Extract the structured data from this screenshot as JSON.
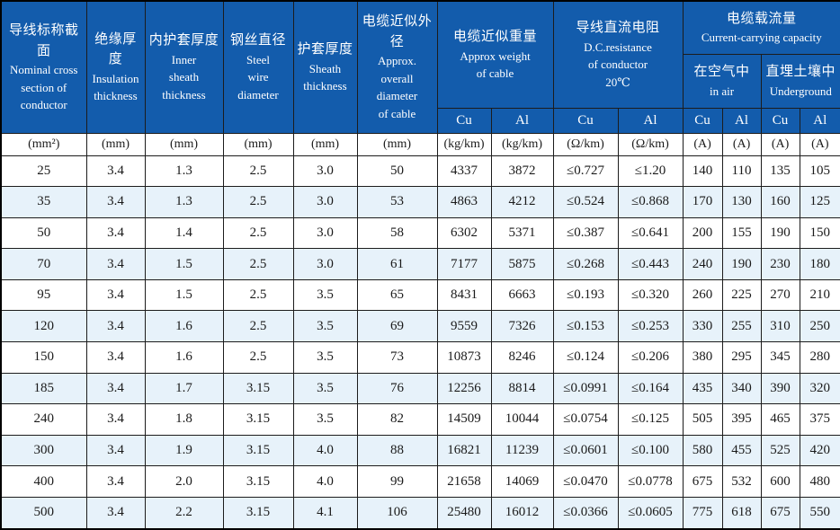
{
  "table": {
    "title_semantic": "steel-wire-armoured-cable-specification-table",
    "columns": [
      {
        "cn": "导线标称截面",
        "en": "Nominal cross\nsection of\nconductor"
      },
      {
        "cn": "绝缘厚度",
        "en": "Insulation\nthickness"
      },
      {
        "cn": "内护套厚度",
        "en": "Inner\nsheath\nthickness"
      },
      {
        "cn": "钢丝直径",
        "en": "Steel\nwire\ndiameter"
      },
      {
        "cn": "护套厚度",
        "en": "Sheath\nthickness"
      },
      {
        "cn": "电缆近似外径",
        "en": "Approx.\noverall\ndiameter\nof cable"
      }
    ],
    "groups": {
      "weight": {
        "cn": "电缆近似重量",
        "en": "Approx weight\nof cable"
      },
      "resistance": {
        "cn": "导线直流电阻",
        "en": "D.C.resistance\nof conductor\n20℃"
      },
      "capacity": {
        "cn": "电缆载流量",
        "en": "Current-carrying capacity"
      },
      "in_air": {
        "cn": "在空气中",
        "en": "in air"
      },
      "underground": {
        "cn": "直埋土壤中",
        "en": "Underground"
      }
    },
    "materials": [
      "Cu",
      "Al",
      "Cu",
      "Al",
      "Cu",
      "Al",
      "Cu",
      "Al"
    ],
    "units": [
      "(mm²)",
      "(mm)",
      "(mm)",
      "(mm)",
      "(mm)",
      "(mm)",
      "(kg/km)",
      "(kg/km)",
      "(Ω/km)",
      "(Ω/km)",
      "(A)",
      "(A)",
      "(A)",
      "(A)"
    ],
    "rows": [
      [
        "25",
        "3.4",
        "1.3",
        "2.5",
        "3.0",
        "50",
        "4337",
        "3872",
        "≤0.727",
        "≤1.20",
        "140",
        "110",
        "135",
        "105"
      ],
      [
        "35",
        "3.4",
        "1.3",
        "2.5",
        "3.0",
        "53",
        "4863",
        "4212",
        "≤0.524",
        "≤0.868",
        "170",
        "130",
        "160",
        "125"
      ],
      [
        "50",
        "3.4",
        "1.4",
        "2.5",
        "3.0",
        "58",
        "6302",
        "5371",
        "≤0.387",
        "≤0.641",
        "200",
        "155",
        "190",
        "150"
      ],
      [
        "70",
        "3.4",
        "1.5",
        "2.5",
        "3.0",
        "61",
        "7177",
        "5875",
        "≤0.268",
        "≤0.443",
        "240",
        "190",
        "230",
        "180"
      ],
      [
        "95",
        "3.4",
        "1.5",
        "2.5",
        "3.5",
        "65",
        "8431",
        "6663",
        "≤0.193",
        "≤0.320",
        "260",
        "225",
        "270",
        "210"
      ],
      [
        "120",
        "3.4",
        "1.6",
        "2.5",
        "3.5",
        "69",
        "9559",
        "7326",
        "≤0.153",
        "≤0.253",
        "330",
        "255",
        "310",
        "250"
      ],
      [
        "150",
        "3.4",
        "1.6",
        "2.5",
        "3.5",
        "73",
        "10873",
        "8246",
        "≤0.124",
        "≤0.206",
        "380",
        "295",
        "345",
        "280"
      ],
      [
        "185",
        "3.4",
        "1.7",
        "3.15",
        "3.5",
        "76",
        "12256",
        "8814",
        "≤0.0991",
        "≤0.164",
        "435",
        "340",
        "390",
        "320"
      ],
      [
        "240",
        "3.4",
        "1.8",
        "3.15",
        "3.5",
        "82",
        "14509",
        "10044",
        "≤0.0754",
        "≤0.125",
        "505",
        "395",
        "465",
        "375"
      ],
      [
        "300",
        "3.4",
        "1.9",
        "3.15",
        "4.0",
        "88",
        "16821",
        "11239",
        "≤0.0601",
        "≤0.100",
        "580",
        "455",
        "525",
        "420"
      ],
      [
        "400",
        "3.4",
        "2.0",
        "3.15",
        "4.0",
        "99",
        "21658",
        "14069",
        "≤0.0470",
        "≤0.0778",
        "675",
        "532",
        "600",
        "480"
      ],
      [
        "500",
        "3.4",
        "2.2",
        "3.15",
        "4.1",
        "106",
        "25480",
        "16012",
        "≤0.0366",
        "≤0.0605",
        "775",
        "618",
        "675",
        "550"
      ]
    ]
  },
  "colors": {
    "header_bg": "#135CAC",
    "header_text": "#ffffff",
    "row_alt_bg": "#e7f2fa",
    "row_bg": "#ffffff",
    "border": "#1c1c1c",
    "body_text": "#1a1a1a"
  }
}
